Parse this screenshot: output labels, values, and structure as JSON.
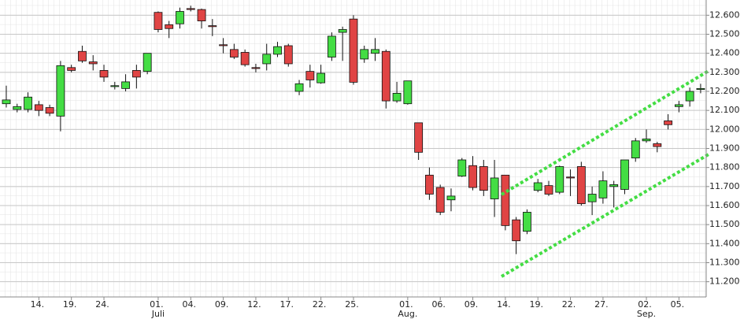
{
  "chart_data": {
    "type": "candlestick",
    "categories": [
      null,
      null,
      null,
      "14.",
      null,
      null,
      "19.",
      null,
      null,
      "24.",
      null,
      null,
      null,
      null,
      "01.",
      null,
      null,
      "04.",
      null,
      null,
      "09.",
      null,
      null,
      "12.",
      null,
      null,
      "17.",
      null,
      null,
      "22.",
      null,
      null,
      "25.",
      null,
      null,
      null,
      null,
      "01.",
      null,
      null,
      "06.",
      null,
      null,
      "09.",
      null,
      null,
      "14.",
      null,
      null,
      "19.",
      null,
      null,
      "22.",
      null,
      null,
      "27.",
      null,
      null,
      null,
      "02.",
      null,
      null,
      "05.",
      null,
      null
    ],
    "months": [
      null,
      null,
      null,
      null,
      null,
      null,
      null,
      null,
      null,
      null,
      null,
      null,
      null,
      null,
      "Juli",
      null,
      null,
      null,
      null,
      null,
      null,
      null,
      null,
      null,
      null,
      null,
      null,
      null,
      null,
      null,
      null,
      null,
      null,
      null,
      null,
      null,
      null,
      "Aug.",
      null,
      null,
      null,
      null,
      null,
      null,
      null,
      null,
      null,
      null,
      null,
      null,
      null,
      null,
      null,
      null,
      null,
      null,
      null,
      null,
      null,
      "Sep.",
      null,
      null,
      null,
      null,
      null
    ],
    "open": [
      12135,
      12105,
      12105,
      12130,
      12115,
      12070,
      12325,
      12410,
      12355,
      12310,
      12225,
      12215,
      12310,
      12305,
      12615,
      12550,
      12555,
      12635,
      12630,
      12545,
      12445,
      12420,
      12405,
      12325,
      12345,
      12395,
      12440,
      12200,
      12305,
      12245,
      12380,
      12510,
      12580,
      12370,
      12400,
      12410,
      12150,
      12135,
      12035,
      11760,
      11695,
      11630,
      11755,
      11810,
      11805,
      11635,
      11760,
      11525,
      11465,
      11680,
      11705,
      11670,
      11750,
      11805,
      11620,
      11640,
      11700,
      11685,
      11850,
      11940,
      11925,
      12045,
      12120,
      12150,
      12210
    ],
    "high": [
      12230,
      12135,
      12195,
      12150,
      12130,
      12360,
      12340,
      12440,
      12390,
      12340,
      12250,
      12290,
      12340,
      12400,
      12620,
      12570,
      12640,
      12650,
      12635,
      12580,
      12480,
      12450,
      12420,
      12345,
      12450,
      12460,
      12450,
      12260,
      12340,
      12340,
      12510,
      12540,
      12600,
      12440,
      12480,
      12420,
      12250,
      12255,
      12035,
      11800,
      11710,
      11690,
      11850,
      11860,
      11840,
      11840,
      11760,
      11540,
      11580,
      11740,
      11730,
      11810,
      11790,
      11830,
      11700,
      11780,
      11730,
      11840,
      11955,
      12000,
      11935,
      12080,
      12150,
      12220,
      12240
    ],
    "low": [
      12115,
      12090,
      12090,
      12070,
      12070,
      11990,
      12300,
      12350,
      12310,
      12250,
      12210,
      12200,
      12215,
      12290,
      12510,
      12480,
      12530,
      12620,
      12530,
      12490,
      12400,
      12370,
      12330,
      12300,
      12310,
      12380,
      12330,
      12180,
      12220,
      12240,
      12360,
      12360,
      12235,
      12350,
      12360,
      12110,
      12140,
      12130,
      11840,
      11630,
      11550,
      11570,
      11750,
      11680,
      11650,
      11540,
      11470,
      11345,
      11450,
      11670,
      11650,
      11660,
      11650,
      11600,
      11550,
      11610,
      11590,
      11660,
      11830,
      11930,
      11880,
      12000,
      12090,
      12120,
      12190
    ],
    "close": [
      12155,
      12120,
      12170,
      12100,
      12085,
      12335,
      12310,
      12360,
      12345,
      12275,
      12230,
      12250,
      12275,
      12400,
      12525,
      12530,
      12620,
      12630,
      12570,
      12540,
      12440,
      12380,
      12340,
      12320,
      12395,
      12435,
      12345,
      12240,
      12260,
      12295,
      12490,
      12525,
      12248,
      12420,
      12420,
      12150,
      12190,
      12255,
      11880,
      11660,
      11565,
      11650,
      11840,
      11695,
      11680,
      11745,
      11495,
      11415,
      11565,
      11720,
      11660,
      11805,
      11745,
      11610,
      11660,
      11730,
      11710,
      11840,
      11940,
      11950,
      11910,
      12025,
      12130,
      12200,
      12215
    ],
    "up_color": "#44dd44",
    "down_color": "#e04444",
    "ylim": [
      11120,
      12680
    ],
    "yticks": [
      {
        "value": 11200,
        "label": "11.200"
      },
      {
        "value": 11300,
        "label": "11.300"
      },
      {
        "value": 11400,
        "label": "11.400"
      },
      {
        "value": 11500,
        "label": "11.500"
      },
      {
        "value": 11600,
        "label": "11.600"
      },
      {
        "value": 11700,
        "label": "11.700"
      },
      {
        "value": 11800,
        "label": "11.800"
      },
      {
        "value": 11900,
        "label": "11.900"
      },
      {
        "value": 12000,
        "label": "12.000"
      },
      {
        "value": 12100,
        "label": "12.100"
      },
      {
        "value": 12200,
        "label": "12.200"
      },
      {
        "value": 12300,
        "label": "12.300"
      },
      {
        "value": 12400,
        "label": "12.400"
      },
      {
        "value": 12500,
        "label": "12.500"
      },
      {
        "value": 12600,
        "label": "12.600"
      }
    ],
    "grid": true
  }
}
